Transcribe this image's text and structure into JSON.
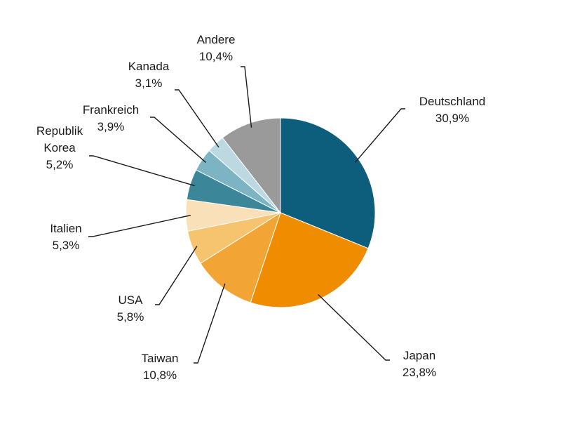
{
  "chart_data": {
    "type": "pie",
    "slices": [
      {
        "label": "Deutschland",
        "value_text": "30,9%",
        "value": 30.9,
        "color": "#0d5e7d"
      },
      {
        "label": "Japan",
        "value_text": "23,8%",
        "value": 23.8,
        "color": "#f08c00"
      },
      {
        "label": "Taiwan",
        "value_text": "10,8%",
        "value": 10.8,
        "color": "#f2a535"
      },
      {
        "label": "USA",
        "value_text": "5,8%",
        "value": 5.8,
        "color": "#f6c36e"
      },
      {
        "label": "Italien",
        "value_text": "5,3%",
        "value": 5.3,
        "color": "#fae0b8"
      },
      {
        "label": "Republik Korea",
        "label_lines": [
          "Republik",
          "Korea"
        ],
        "value_text": "5,2%",
        "value": 5.2,
        "color": "#3b8799"
      },
      {
        "label": "Frankreich",
        "value_text": "3,9%",
        "value": 3.9,
        "color": "#7db4c3"
      },
      {
        "label": "Kanada",
        "value_text": "3,1%",
        "value": 3.1,
        "color": "#bcd9e2"
      },
      {
        "label": "Andere",
        "value_text": "10,4%",
        "value": 10.4,
        "color": "#9a9a9a"
      }
    ]
  }
}
